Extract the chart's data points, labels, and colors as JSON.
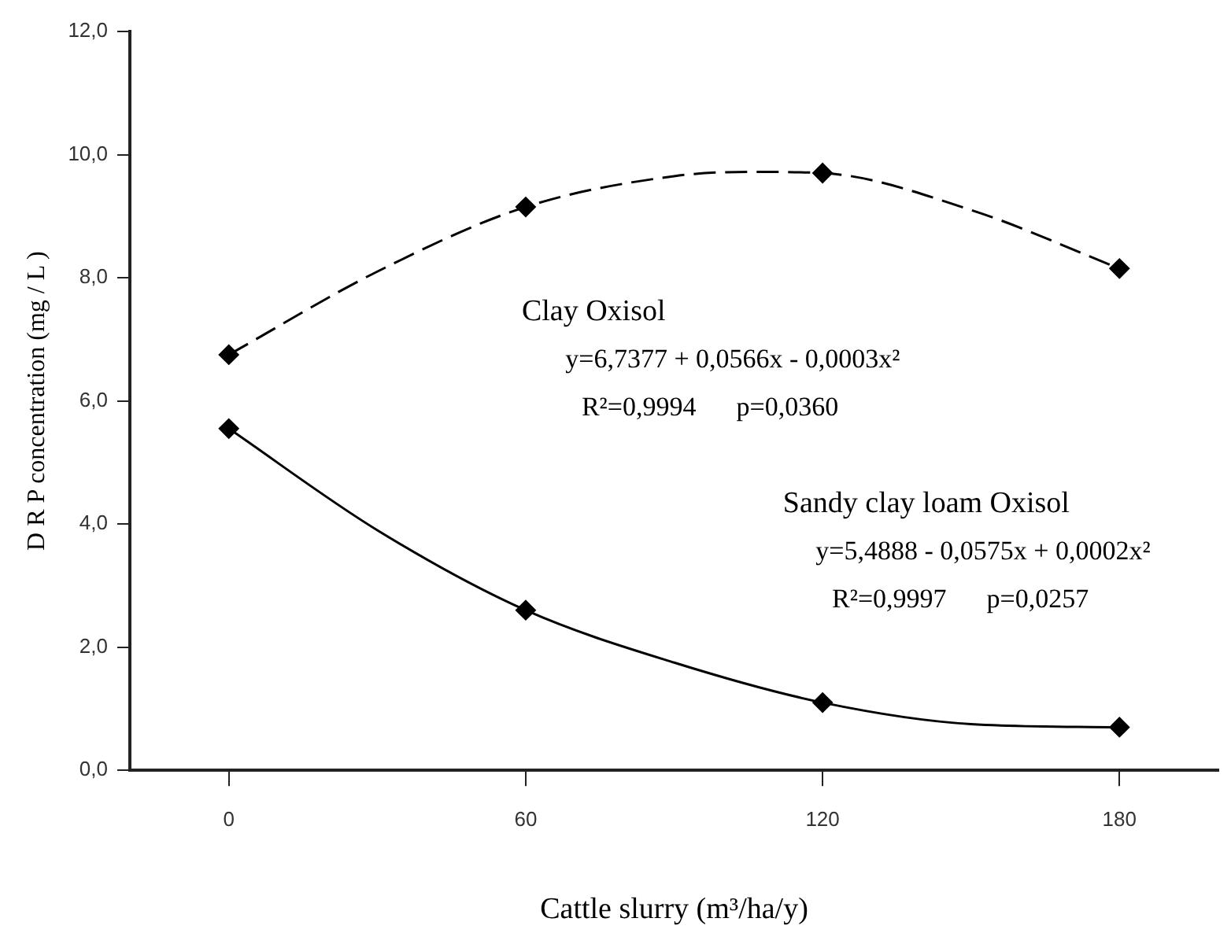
{
  "chart_data": {
    "type": "scatter",
    "xlabel": "Cattle slurry (m³/ha/y)",
    "ylabel": "D R P concentration (mg / L )",
    "xlim": [
      -20,
      200
    ],
    "xticks": [
      0,
      60,
      120,
      180
    ],
    "ylim": [
      0,
      12
    ],
    "yticks": [
      {
        "value": 0,
        "label": "0,0"
      },
      {
        "value": 2,
        "label": "2,0"
      },
      {
        "value": 4,
        "label": "4,0"
      },
      {
        "value": 6,
        "label": "6,0"
      },
      {
        "value": 8,
        "label": "8,0"
      },
      {
        "value": 10,
        "label": "10,0"
      },
      {
        "value": 12,
        "label": "12,0"
      }
    ],
    "grid": false,
    "legend": false,
    "series": [
      {
        "type": "line",
        "color": "#000000",
        "line_style": "dashed",
        "marker": "none",
        "x": [
          0,
          30,
          60,
          90,
          105,
          120,
          150,
          180
        ],
        "values": [
          6.75,
          8.1,
          9.15,
          9.65,
          9.72,
          9.7,
          9.1,
          8.15
        ]
      },
      {
        "type": "line",
        "color": "#000000",
        "line_style": "solid",
        "marker": "none",
        "x": [
          0,
          30,
          60,
          90,
          120,
          150,
          180
        ],
        "values": [
          5.55,
          3.9,
          2.6,
          1.75,
          1.1,
          0.75,
          0.7
        ]
      },
      {
        "color": "#000000",
        "marker": "diamond",
        "x": [
          0,
          60,
          120,
          180
        ],
        "values": [
          6.75,
          9.15,
          9.7,
          8.15
        ]
      },
      {
        "color": "#000000",
        "marker": "diamond",
        "x": [
          0,
          60,
          120,
          180
        ],
        "values": [
          5.55,
          2.6,
          1.1,
          0.7
        ]
      }
    ],
    "annotations": [
      "Clay Oxisol",
      "y=6,7377 + 0,0566x - 0,0003x²",
      "R²=0,9994      p=0,0360",
      "Sandy clay loam Oxisol",
      "y=5,4888 - 0,0575x + 0,0002x²",
      "R²=0,9997      p=0,0257"
    ]
  }
}
